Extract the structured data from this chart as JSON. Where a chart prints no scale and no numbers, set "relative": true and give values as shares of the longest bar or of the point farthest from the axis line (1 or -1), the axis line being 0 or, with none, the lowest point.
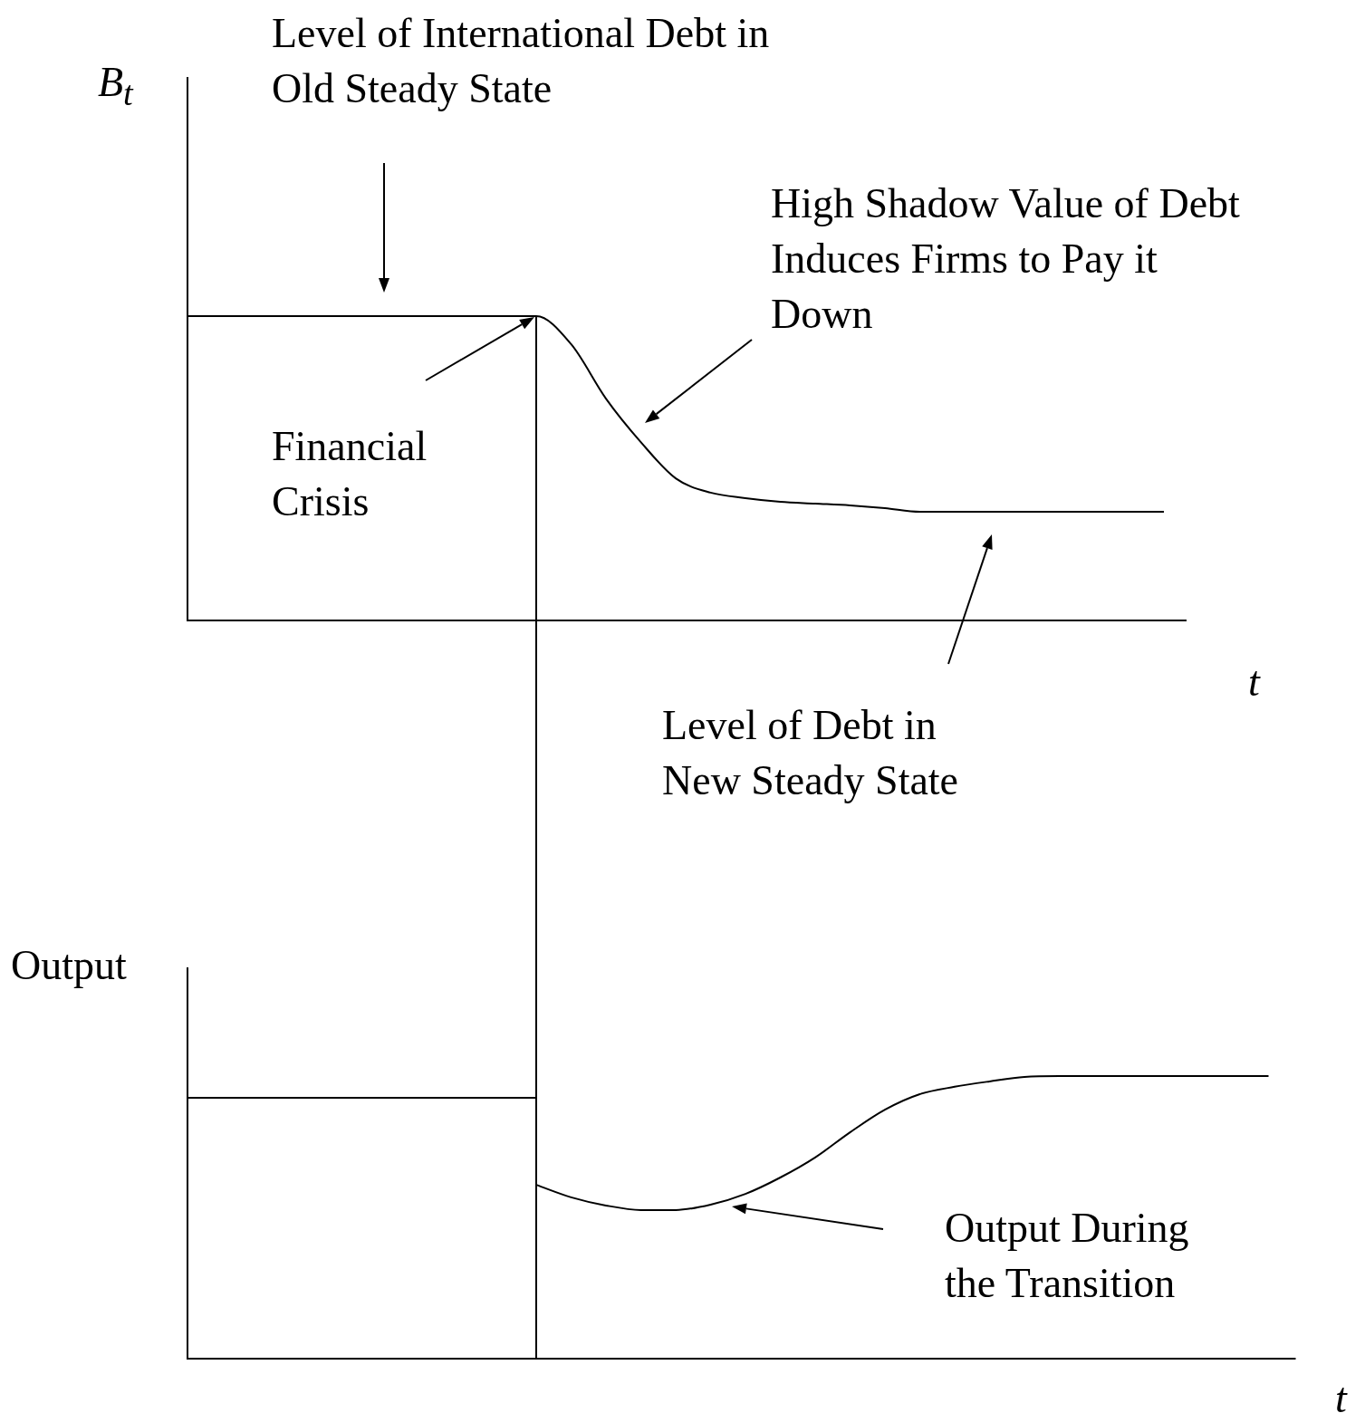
{
  "chart_data": [
    {
      "type": "line",
      "ylabel": "B$_{t}$",
      "xlabel": "t",
      "relative": true,
      "annotations": [
        "Level of International Debt in Old Steady State",
        "Financial Crisis",
        "High Shadow Value of Debt Induces Firms to Pay it Down",
        "Level of Debt in New Steady State"
      ],
      "categories": [
        null,
        null,
        null,
        null,
        null,
        null,
        null,
        null,
        null,
        null,
        null,
        null,
        null,
        null,
        null,
        null,
        null,
        null,
        null,
        null,
        null,
        null,
        null,
        null,
        null,
        null,
        null,
        null,
        null
      ],
      "series": [
        {
          "color": "#000000",
          "values": [
            1,
            1,
            1,
            1,
            1,
            1,
            1,
            1,
            1,
            1,
            1,
            0.908,
            0.729,
            0.586,
            0.467,
            0.42,
            0.402,
            0.39,
            0.384,
            0.378,
            0.369,
            0.357,
            0.357,
            0.357,
            0.357,
            0.357,
            0.357,
            0.357,
            0.357
          ]
        }
      ]
    },
    {
      "type": "line",
      "ylabel": "Output",
      "xlabel": "t",
      "relative": true,
      "annotations": [
        "Output During the Transition"
      ],
      "categories": [
        null,
        null,
        null,
        null,
        null,
        null,
        null,
        null,
        null,
        null,
        null,
        null,
        null,
        null,
        null,
        null,
        null,
        null,
        null,
        null,
        null,
        null,
        null,
        null,
        null,
        null,
        null,
        null,
        null,
        null,
        null,
        null
      ],
      "series": [
        {
          "color": "#000000",
          "values": [
            0.923,
            0.923,
            0.923,
            0.923,
            0.923,
            0.923,
            0.923,
            0.923,
            0.923,
            0.923,
            0.923,
            null,
            null,
            null,
            null,
            null,
            null,
            null,
            null,
            null,
            null,
            null,
            null,
            null,
            null,
            null,
            null,
            null,
            null,
            null,
            null,
            null
          ]
        },
        {
          "color": "#000000",
          "values": [
            null,
            null,
            null,
            null,
            null,
            null,
            null,
            null,
            null,
            null,
            0.615,
            0.571,
            0.542,
            0.526,
            0.526,
            0.545,
            0.583,
            0.641,
            0.712,
            0.801,
            0.881,
            0.936,
            0.962,
            0.981,
            0.997,
            1,
            1,
            1,
            1,
            1,
            1,
            1
          ]
        }
      ]
    }
  ]
}
